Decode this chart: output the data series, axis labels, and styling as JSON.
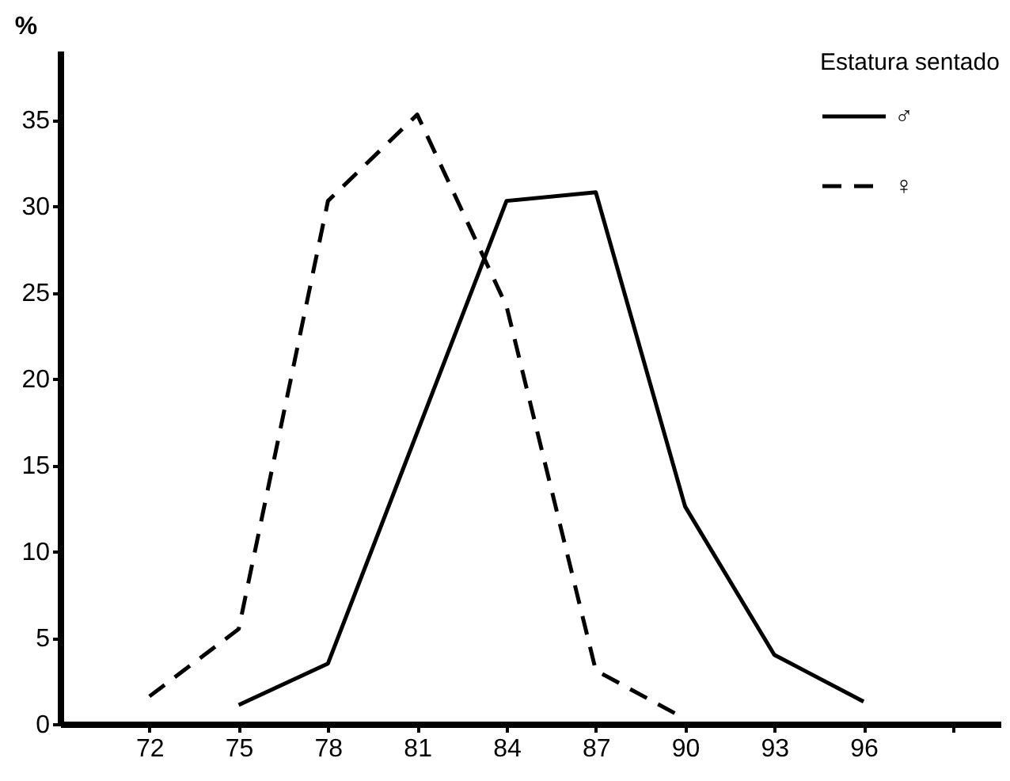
{
  "chart_data": {
    "type": "line",
    "ylabel": "%",
    "legend_title": "Estatura sentado",
    "legend": "top right",
    "grid": false,
    "marker": "none",
    "xlim": [
      69,
      100.6
    ],
    "xticks": [
      72,
      75,
      78,
      81,
      84,
      87,
      90,
      93,
      96,
      {
        "value": 99,
        "label": null
      }
    ],
    "ylim": [
      0,
      39
    ],
    "yticks": [
      0,
      5,
      10,
      15,
      20,
      25,
      30,
      35
    ],
    "series": [
      {
        "name": "♂",
        "color": "#000000",
        "line_style": "solid",
        "x": [
          75,
          78,
          84,
          87,
          90,
          93,
          96
        ],
        "values": [
          1.1,
          3.5,
          30.3,
          30.8,
          12.6,
          4.0,
          1.3
        ]
      },
      {
        "name": "♀",
        "color": "#000000",
        "line_style": "dashed",
        "x": [
          72,
          75,
          78,
          81,
          84,
          87,
          90
        ],
        "values": [
          1.6,
          5.5,
          30.3,
          35.3,
          24.2,
          3.1,
          0.3
        ]
      }
    ]
  }
}
